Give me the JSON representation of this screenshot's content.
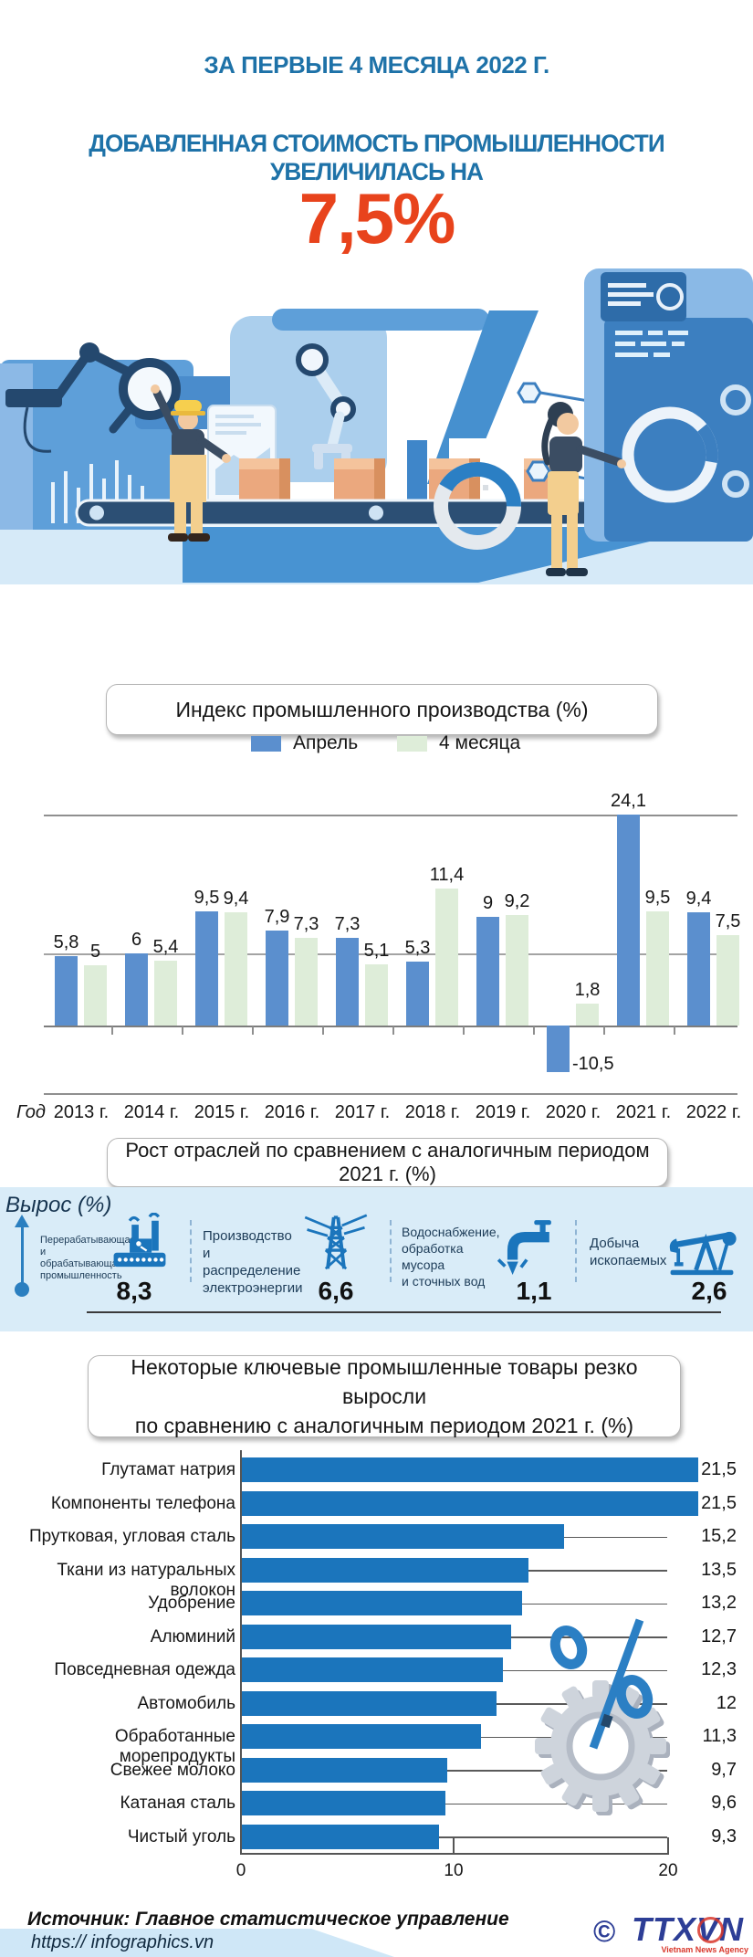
{
  "header": {
    "line1": "ЗА ПЕРВЫЕ 4 МЕСЯЦА 2022 Г.",
    "line2": "ДОБАВЛЕННАЯ СТОИМОСТЬ ПРОМЫШЛЕННОСТИ УВЕЛИЧИЛАСЬ НА",
    "big_number": "7,5%"
  },
  "chart_data": [
    {
      "type": "bar",
      "title": "Индекс промышленного производства (%)",
      "x_axis_label": "Год",
      "categories": [
        "2013 г.",
        "2014 г.",
        "2015 г.",
        "2016 г.",
        "2017 г.",
        "2018 г.",
        "2019 г.",
        "2020 г.",
        "2021 г.",
        "2022 г."
      ],
      "series": [
        {
          "name": "Апрель",
          "color": "#5b8fce",
          "values": [
            5.8,
            6,
            9.5,
            7.9,
            7.3,
            5.3,
            9,
            -10.5,
            24.1,
            9.4
          ]
        },
        {
          "name": "4 месяца",
          "color": "#deedd9",
          "values": [
            5,
            5.4,
            9.4,
            7.3,
            5.1,
            11.4,
            9.2,
            1.8,
            9.5,
            7.5
          ]
        }
      ],
      "value_labels": [
        [
          "5,8",
          "6",
          "9,5",
          "7,9",
          "7,3",
          "5,3",
          "9",
          "-10,5",
          "24,1",
          "9,4"
        ],
        [
          "5",
          "5,4",
          "9,4",
          "7,3",
          "5,1",
          "11,4",
          "9,2",
          "1,8",
          "9,5",
          "7,5"
        ]
      ],
      "legend_position": "top",
      "grid": "horizontal lines at 0 and ~6, top frame line; 2021 bar (24,1) clipped at plot top; 2020 negative bar drawn compressed"
    },
    {
      "type": "bar-horizontal",
      "title_line1": "Некоторые ключевые промышленные товары резко выросли",
      "title_line2": "по сравнению с аналогичным  периодом 2021 г. (%)",
      "categories": [
        "Глутамат натрия",
        "Компоненты телефона",
        "Прутковая, угловая сталь",
        "Ткани из натуральных волокон",
        "Удобрение",
        "Алюминий",
        "Повседневная одежда",
        "Автомобиль",
        "Обработанные морепродукты",
        "Свежее молоко",
        "Катаная сталь",
        "Чистый уголь"
      ],
      "values": [
        21.5,
        21.5,
        15.2,
        13.5,
        13.2,
        12.7,
        12.3,
        12,
        11.3,
        9.7,
        9.6,
        9.3
      ],
      "value_labels": [
        "21,5",
        "21,5",
        "15,2",
        "13,5",
        "13,2",
        "12,7",
        "12,3",
        "12",
        "11,3",
        "9,7",
        "9,6",
        "9,3"
      ],
      "x_ticks": [
        "0",
        "10",
        "20"
      ],
      "xlim": [
        0,
        21.5
      ],
      "bar_color": "#1b75bc"
    }
  ],
  "sectors": {
    "title": "Рост отраслей по сравнением с аналогичным периодом 2021 г. (%)",
    "axis_label": "Вырос (%)",
    "items": [
      {
        "label": "Перерабатывающая\nи обрабатывающая\nпромышленность",
        "value": "8,3",
        "icon": "factory-icon"
      },
      {
        "label": "Производство и\nраспределение\nэлектроэнергии",
        "value": "6,6",
        "icon": "power-tower-icon"
      },
      {
        "label": "Водоснабжение,\nобработка мусора\nи сточных вод",
        "value": "1,1",
        "icon": "water-tap-icon"
      },
      {
        "label": "Добыча\nископаемых",
        "value": "2,6",
        "icon": "oil-pump-icon"
      }
    ]
  },
  "footer": {
    "source": "Источник: Главное статистическое управление",
    "copyright": "©",
    "logo": "TTXVN",
    "logo_sub": "Vietnam News Agency",
    "url": "https:// infographics.vn"
  },
  "colors": {
    "headline_blue": "#1e72a8",
    "accent_red": "#e8431c",
    "column_blue": "#5b8fce",
    "column_green": "#deedd9",
    "hbar_blue": "#1b75bc",
    "icon_blue": "#1b75bc",
    "band_bg": "#d9ecf8",
    "logo_blue": "#2d3e96",
    "logo_red": "#d8362a"
  }
}
